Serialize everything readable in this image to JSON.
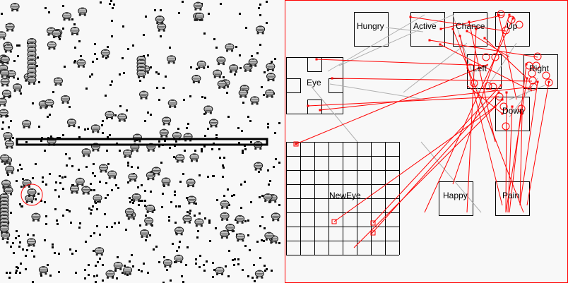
{
  "world": {
    "barrier": true,
    "selected_highlight_color": "#ff0000"
  },
  "brain": {
    "border_color": "#ff0000",
    "wire_excitatory_color": "#ff0000",
    "wire_inhibitory_color": "#b0b0b0",
    "lobes": {
      "hungry": "Hungry",
      "active": "Active",
      "chance": "Chance",
      "up": "Up",
      "left": "Left",
      "right": "Right",
      "down": "Down",
      "eye": "Eye",
      "neweye": "NewEye",
      "happy": "Happy",
      "pain": "Pain"
    }
  }
}
